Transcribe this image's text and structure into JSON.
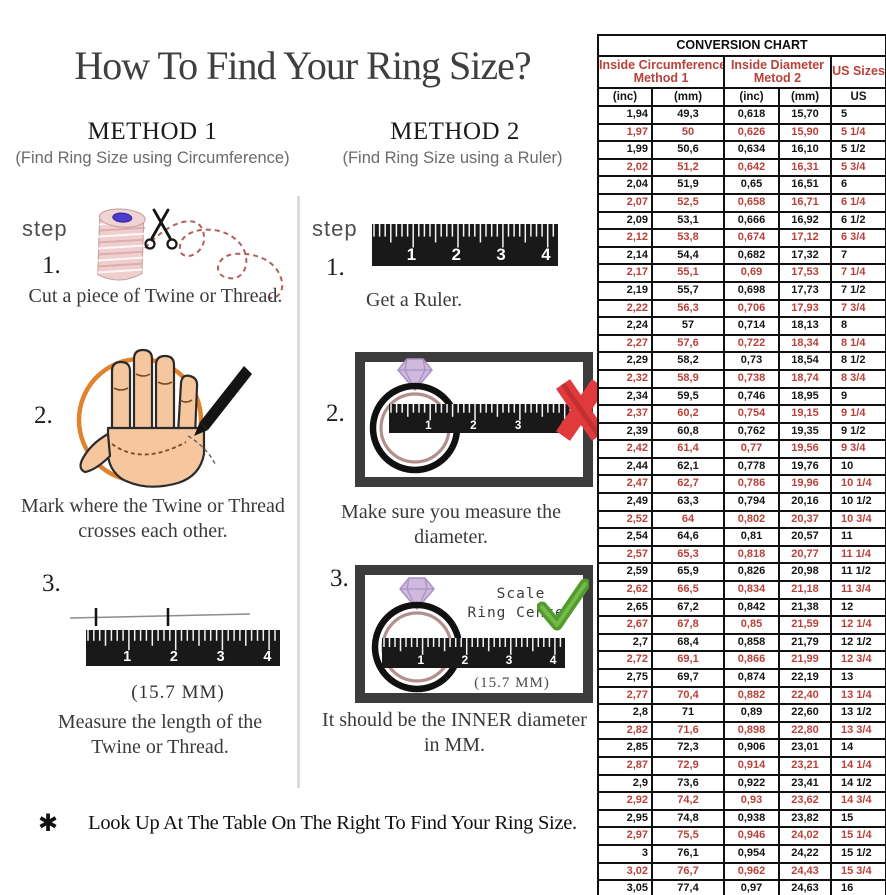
{
  "title": "How To Find Your Ring Size?",
  "method1": {
    "heading": "METHOD 1",
    "subtitle": "(Find Ring Size using Circumference)",
    "step_label": "step",
    "step1": {
      "num": "1.",
      "caption": "Cut a piece of Twine or Thread."
    },
    "step2": {
      "num": "2.",
      "caption_lines": [
        "Mark where the Twine or Thread",
        "crosses each other."
      ]
    },
    "step3": {
      "num": "3.",
      "measurement": "(15.7 MM)",
      "caption_lines": [
        "Measure the length of the",
        "Twine or Thread."
      ]
    }
  },
  "method2": {
    "heading": "METHOD 2",
    "subtitle": "(Find Ring Size using a Ruler)",
    "step_label": "step",
    "step1": {
      "num": "1.",
      "caption": "Get a Ruler."
    },
    "step2": {
      "num": "2.",
      "caption": "Make sure you measure the diameter."
    },
    "step3": {
      "num": "3.",
      "scale_note_lines": [
        "Scale",
        "Ring Center"
      ],
      "measurement": "(15.7 MM)",
      "caption_lines": [
        "It should be the INNER diameter",
        "in MM."
      ]
    }
  },
  "footnote": {
    "bullet": "✱",
    "text": "Look Up At The Table On The Right To Find Your Ring Size."
  },
  "ruler_numbers": [
    "1",
    "2",
    "3",
    "4"
  ],
  "table": {
    "title": "CONVERSION CHART",
    "group_headers": [
      {
        "lines": [
          "Inside Circumference",
          "Method 1"
        ]
      },
      {
        "lines": [
          "Inside Diameter",
          "Metod 2"
        ]
      },
      {
        "lines": [
          "US Sizes"
        ]
      }
    ],
    "sub_headers": [
      "(inc)",
      "(mm)",
      "(inc)",
      "(mm)",
      "US"
    ],
    "rows": [
      [
        "1,94",
        "49,3",
        "0,618",
        "15,70",
        "5"
      ],
      [
        "1,97",
        "50",
        "0,626",
        "15,90",
        "5 1/4"
      ],
      [
        "1,99",
        "50,6",
        "0,634",
        "16,10",
        "5 1/2"
      ],
      [
        "2,02",
        "51,2",
        "0,642",
        "16,31",
        "5 3/4"
      ],
      [
        "2,04",
        "51,9",
        "0,65",
        "16,51",
        "6"
      ],
      [
        "2,07",
        "52,5",
        "0,658",
        "16,71",
        "6 1/4"
      ],
      [
        "2,09",
        "53,1",
        "0,666",
        "16,92",
        "6 1/2"
      ],
      [
        "2,12",
        "53,8",
        "0,674",
        "17,12",
        "6 3/4"
      ],
      [
        "2,14",
        "54,4",
        "0,682",
        "17,32",
        "7"
      ],
      [
        "2,17",
        "55,1",
        "0,69",
        "17,53",
        "7 1/4"
      ],
      [
        "2,19",
        "55,7",
        "0,698",
        "17,73",
        "7 1/2"
      ],
      [
        "2,22",
        "56,3",
        "0,706",
        "17,93",
        "7 3/4"
      ],
      [
        "2,24",
        "57",
        "0,714",
        "18,13",
        "8"
      ],
      [
        "2,27",
        "57,6",
        "0,722",
        "18,34",
        "8 1/4"
      ],
      [
        "2,29",
        "58,2",
        "0,73",
        "18,54",
        "8 1/2"
      ],
      [
        "2,32",
        "58,9",
        "0,738",
        "18,74",
        "8 3/4"
      ],
      [
        "2,34",
        "59,5",
        "0,746",
        "18,95",
        "9"
      ],
      [
        "2,37",
        "60,2",
        "0,754",
        "19,15",
        "9 1/4"
      ],
      [
        "2,39",
        "60,8",
        "0,762",
        "19,35",
        "9 1/2"
      ],
      [
        "2,42",
        "61,4",
        "0,77",
        "19,56",
        "9 3/4"
      ],
      [
        "2,44",
        "62,1",
        "0,778",
        "19,76",
        "10"
      ],
      [
        "2,47",
        "62,7",
        "0,786",
        "19,96",
        "10 1/4"
      ],
      [
        "2,49",
        "63,3",
        "0,794",
        "20,16",
        "10 1/2"
      ],
      [
        "2,52",
        "64",
        "0,802",
        "20,37",
        "10 3/4"
      ],
      [
        "2,54",
        "64,6",
        "0,81",
        "20,57",
        "11"
      ],
      [
        "2,57",
        "65,3",
        "0,818",
        "20,77",
        "11 1/4"
      ],
      [
        "2,59",
        "65,9",
        "0,826",
        "20,98",
        "11 1/2"
      ],
      [
        "2,62",
        "66,5",
        "0,834",
        "21,18",
        "11 3/4"
      ],
      [
        "2,65",
        "67,2",
        "0,842",
        "21,38",
        "12"
      ],
      [
        "2,67",
        "67,8",
        "0,85",
        "21,59",
        "12 1/4"
      ],
      [
        "2,7",
        "68,4",
        "0,858",
        "21,79",
        "12 1/2"
      ],
      [
        "2,72",
        "69,1",
        "0,866",
        "21,99",
        "12 3/4"
      ],
      [
        "2,75",
        "69,7",
        "0,874",
        "22,19",
        "13"
      ],
      [
        "2,77",
        "70,4",
        "0,882",
        "22,40",
        "13 1/4"
      ],
      [
        "2,8",
        "71",
        "0,89",
        "22,60",
        "13 1/2"
      ],
      [
        "2,82",
        "71,6",
        "0,898",
        "22,80",
        "13 3/4"
      ],
      [
        "2,85",
        "72,3",
        "0,906",
        "23,01",
        "14"
      ],
      [
        "2,87",
        "72,9",
        "0,914",
        "23,21",
        "14 1/4"
      ],
      [
        "2,9",
        "73,6",
        "0,922",
        "23,41",
        "14 1/2"
      ],
      [
        "2,92",
        "74,2",
        "0,93",
        "23,62",
        "14 3/4"
      ],
      [
        "2,95",
        "74,8",
        "0,938",
        "23,82",
        "15"
      ],
      [
        "2,97",
        "75,5",
        "0,946",
        "24,02",
        "15 1/4"
      ],
      [
        "3",
        "76,1",
        "0,954",
        "24,22",
        "15 1/2"
      ],
      [
        "3,02",
        "76,7",
        "0,962",
        "24,43",
        "15 3/4"
      ],
      [
        "3,05",
        "77,4",
        "0,97",
        "24,63",
        "16"
      ]
    ]
  },
  "colors": {
    "table_red": "#b9413a",
    "table_black": "#141414",
    "red_x": "#e03a3c",
    "check_green": "#4f9c2c",
    "ring_band": "#b38e8e",
    "diamond": "#cfbade",
    "hand_skin": "#f6c79e",
    "circle_orange": "#e0822e",
    "frame_gray": "#3c3c3c",
    "title_gray": "#3f3f3f"
  }
}
